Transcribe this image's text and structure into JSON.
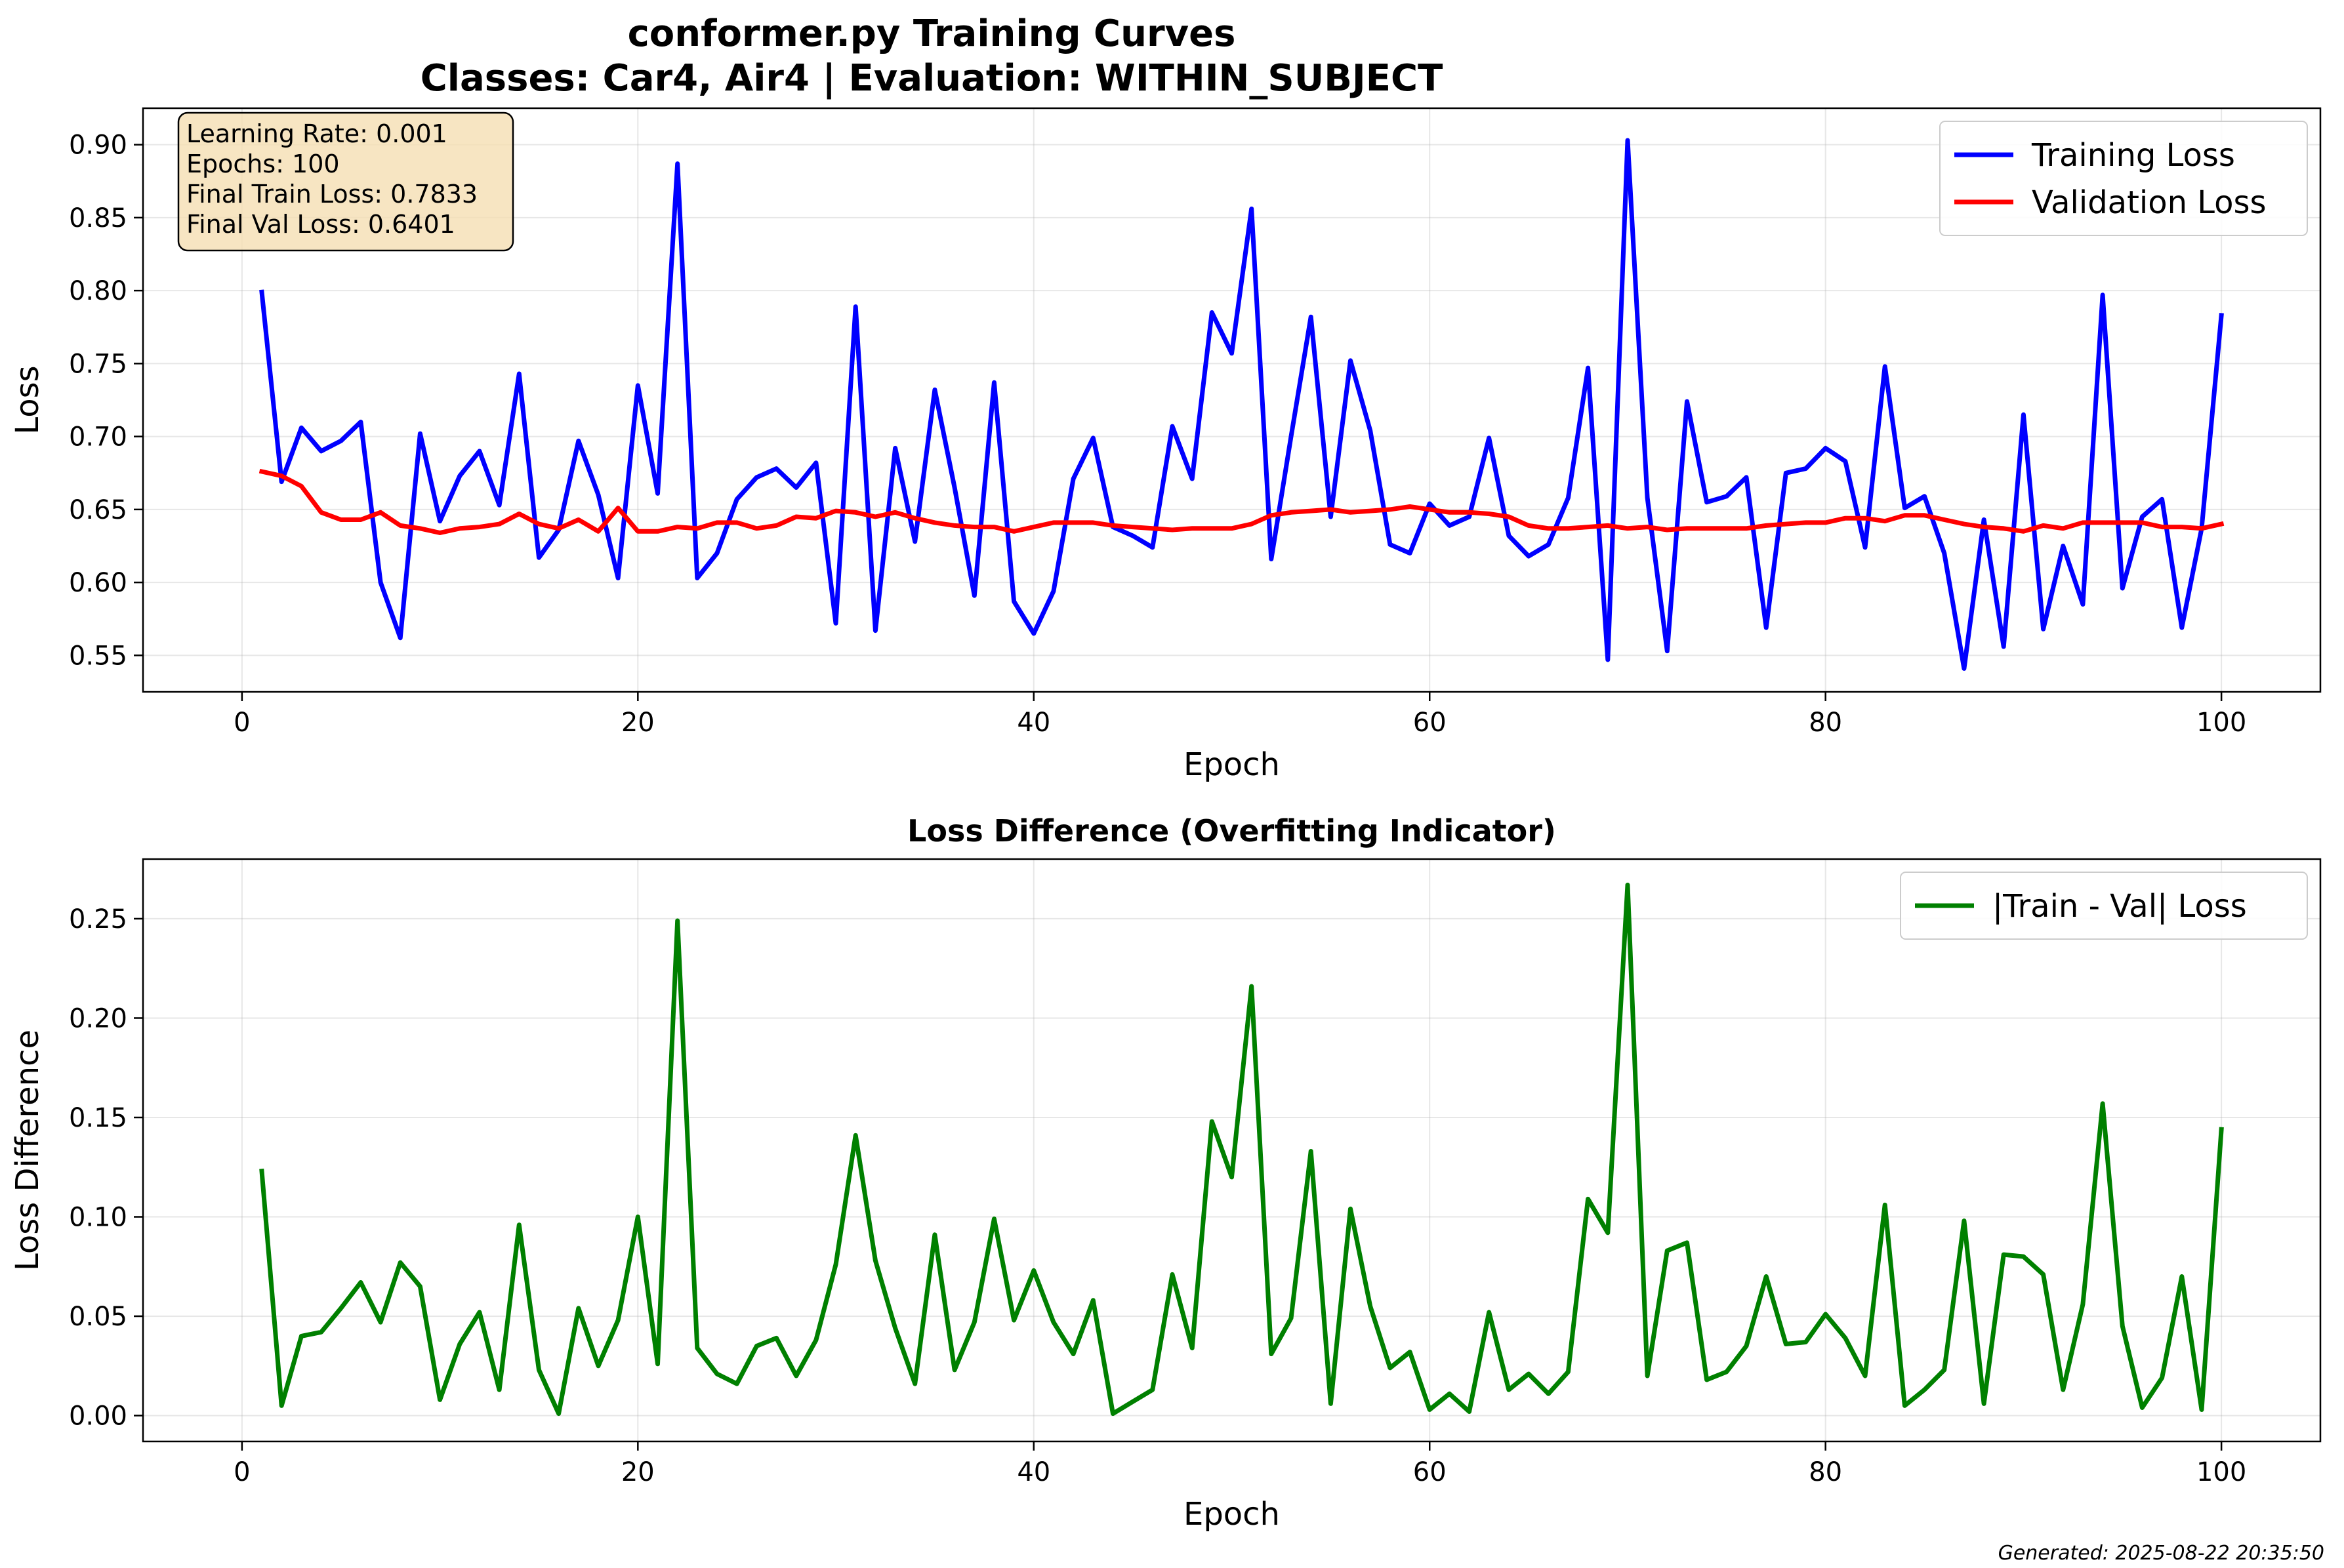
{
  "figure": {
    "title_line1": "conformer.py Training Curves",
    "title_line2": "Classes: Car4, Air4 | Evaluation: WITHIN_SUBJECT",
    "footer": "Generated: 2025-08-22 20:35:50",
    "info_box": {
      "lines": [
        "Learning Rate: 0.001",
        "Epochs: 100",
        "Final Train Loss: 0.7833",
        "Final Val Loss: 0.6401"
      ],
      "facecolor": "#f5deb3"
    }
  },
  "chart_data": [
    {
      "type": "line",
      "title": "",
      "xlabel": "Epoch",
      "ylabel": "Loss",
      "xlim": [
        -5,
        105
      ],
      "ylim": [
        0.525,
        0.925
      ],
      "xticks": [
        0,
        20,
        40,
        60,
        80,
        100
      ],
      "xtick_labels": [
        "0",
        "20",
        "40",
        "60",
        "80",
        "100"
      ],
      "yticks": [
        0.55,
        0.6,
        0.65,
        0.7,
        0.75,
        0.8,
        0.85,
        0.9
      ],
      "ytick_labels": [
        "0.55",
        "0.60",
        "0.65",
        "0.70",
        "0.75",
        "0.80",
        "0.85",
        "0.90"
      ],
      "grid": true,
      "legend": "top-right",
      "series": [
        {
          "name": "Training Loss",
          "color": "#0000ff",
          "values": [
            0.799,
            0.669,
            0.706,
            0.69,
            0.697,
            0.71,
            0.6,
            0.562,
            0.702,
            0.642,
            0.673,
            0.69,
            0.653,
            0.743,
            0.617,
            0.636,
            0.697,
            0.66,
            0.603,
            0.735,
            0.661,
            0.887,
            0.603,
            0.62,
            0.657,
            0.672,
            0.678,
            0.665,
            0.682,
            0.572,
            0.789,
            0.567,
            0.692,
            0.628,
            0.732,
            0.665,
            0.591,
            0.737,
            0.587,
            0.565,
            0.594,
            0.671,
            0.699,
            0.638,
            0.632,
            0.624,
            0.707,
            0.671,
            0.785,
            0.757,
            0.856,
            0.616,
            0.7,
            0.782,
            0.645,
            0.752,
            0.704,
            0.626,
            0.62,
            0.654,
            0.639,
            0.645,
            0.699,
            0.632,
            0.618,
            0.626,
            0.658,
            0.747,
            0.547,
            0.903,
            0.658,
            0.553,
            0.724,
            0.655,
            0.659,
            0.672,
            0.569,
            0.675,
            0.678,
            0.692,
            0.683,
            0.624,
            0.748,
            0.651,
            0.659,
            0.62,
            0.541,
            0.643,
            0.556,
            0.715,
            0.568,
            0.625,
            0.585,
            0.797,
            0.596,
            0.645,
            0.657,
            0.569,
            0.637,
            0.783
          ]
        },
        {
          "name": "Validation Loss",
          "color": "#ff0000",
          "values": [
            0.676,
            0.673,
            0.666,
            0.648,
            0.643,
            0.643,
            0.648,
            0.639,
            0.637,
            0.634,
            0.637,
            0.638,
            0.64,
            0.647,
            0.64,
            0.637,
            0.643,
            0.635,
            0.651,
            0.635,
            0.635,
            0.638,
            0.637,
            0.641,
            0.641,
            0.637,
            0.639,
            0.645,
            0.644,
            0.649,
            0.648,
            0.645,
            0.648,
            0.644,
            0.641,
            0.639,
            0.638,
            0.638,
            0.635,
            0.638,
            0.641,
            0.641,
            0.641,
            0.639,
            0.638,
            0.637,
            0.636,
            0.637,
            0.637,
            0.637,
            0.64,
            0.646,
            0.648,
            0.649,
            0.65,
            0.648,
            0.649,
            0.65,
            0.652,
            0.65,
            0.648,
            0.648,
            0.647,
            0.645,
            0.639,
            0.637,
            0.637,
            0.638,
            0.639,
            0.637,
            0.638,
            0.636,
            0.637,
            0.637,
            0.637,
            0.637,
            0.639,
            0.64,
            0.641,
            0.641,
            0.644,
            0.644,
            0.642,
            0.646,
            0.646,
            0.643,
            0.64,
            0.638,
            0.637,
            0.635,
            0.639,
            0.637,
            0.641,
            0.641,
            0.641,
            0.641,
            0.638,
            0.638,
            0.637,
            0.64
          ]
        }
      ]
    },
    {
      "type": "line",
      "title": "Loss Difference (Overfitting Indicator)",
      "xlabel": "Epoch",
      "ylabel": "Loss Difference",
      "xlim": [
        -5,
        105
      ],
      "ylim": [
        -0.013,
        0.28
      ],
      "xticks": [
        0,
        20,
        40,
        60,
        80,
        100
      ],
      "xtick_labels": [
        "0",
        "20",
        "40",
        "60",
        "80",
        "100"
      ],
      "yticks": [
        0.0,
        0.05,
        0.1,
        0.15,
        0.2,
        0.25
      ],
      "ytick_labels": [
        "0.00",
        "0.05",
        "0.10",
        "0.15",
        "0.20",
        "0.25"
      ],
      "grid": true,
      "legend": "top-right",
      "series": [
        {
          "name": "|Train - Val| Loss",
          "color": "#008000",
          "values": [
            0.123,
            0.005,
            0.04,
            0.042,
            0.054,
            0.067,
            0.047,
            0.077,
            0.065,
            0.008,
            0.036,
            0.052,
            0.013,
            0.096,
            0.023,
            0.001,
            0.054,
            0.025,
            0.048,
            0.1,
            0.026,
            0.249,
            0.034,
            0.021,
            0.016,
            0.035,
            0.039,
            0.02,
            0.038,
            0.076,
            0.141,
            0.078,
            0.044,
            0.016,
            0.091,
            0.023,
            0.047,
            0.099,
            0.048,
            0.073,
            0.047,
            0.031,
            0.058,
            0.001,
            0.007,
            0.013,
            0.071,
            0.034,
            0.148,
            0.12,
            0.216,
            0.031,
            0.049,
            0.133,
            0.006,
            0.104,
            0.055,
            0.024,
            0.032,
            0.003,
            0.011,
            0.002,
            0.052,
            0.013,
            0.021,
            0.011,
            0.022,
            0.109,
            0.092,
            0.267,
            0.02,
            0.083,
            0.087,
            0.018,
            0.022,
            0.035,
            0.07,
            0.036,
            0.037,
            0.051,
            0.039,
            0.02,
            0.106,
            0.005,
            0.013,
            0.023,
            0.098,
            0.006,
            0.081,
            0.08,
            0.071,
            0.013,
            0.056,
            0.157,
            0.045,
            0.004,
            0.019,
            0.07,
            0.003,
            0.144
          ]
        }
      ]
    }
  ]
}
